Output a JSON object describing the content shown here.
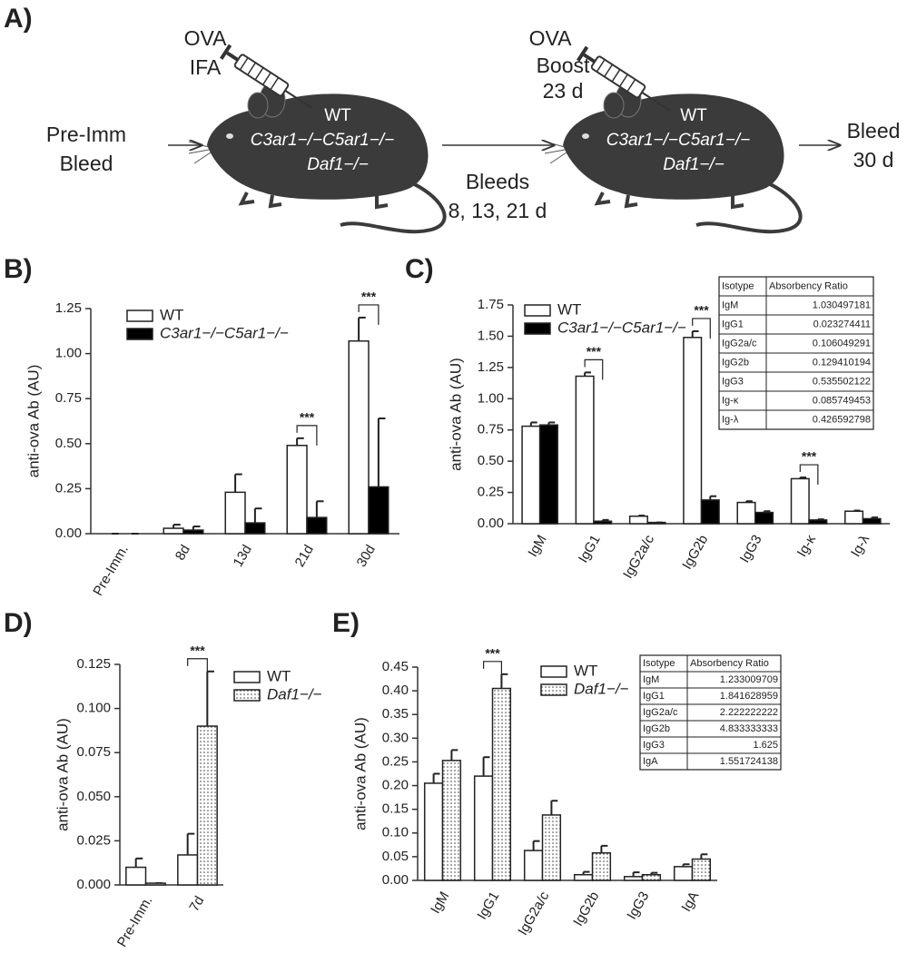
{
  "panel_a": {
    "label": "A)",
    "injection_1": [
      "OVA",
      "IFA"
    ],
    "pre_bleed": [
      "Pre-Imm",
      "Bleed"
    ],
    "mouse_1": [
      "WT",
      "C3ar1−/−C5ar1−/−",
      "Daf1−/−"
    ],
    "bleeds": [
      "Bleeds",
      "8, 13, 21 d"
    ],
    "injection_2": [
      "OVA",
      "Boost",
      "23 d"
    ],
    "mouse_2": [
      "WT",
      "C3ar1−/−C5ar1−/−",
      "Daf1−/−"
    ],
    "final_bleed": [
      "Bleed",
      "30 d"
    ]
  },
  "chart_data": [
    {
      "type": "bar",
      "label": "B)",
      "y_label": "anti-ova Ab (AU)",
      "legend": "upper left",
      "categories": [
        "Pre-Imm.",
        "8d",
        "13d",
        "21d",
        "30d"
      ],
      "series": [
        {
          "name": "WT",
          "color": "#ffffff",
          "italic": false,
          "values": [
            0,
            0.03,
            0.23,
            0.49,
            1.07
          ],
          "errors": [
            0,
            0.02,
            0.1,
            0.04,
            0.13
          ]
        },
        {
          "name": "C3ar1−/−C5ar1−/−",
          "color": "#000000",
          "italic": true,
          "values": [
            0,
            0.02,
            0.06,
            0.09,
            0.26
          ],
          "errors": [
            0,
            0.02,
            0.08,
            0.09,
            0.38
          ]
        }
      ],
      "ylim": [
        0,
        1.25
      ],
      "yticks": [
        {
          "value": 0,
          "label": "0.00"
        },
        0.25,
        {
          "value": 0.5,
          "label": "0.50"
        },
        0.75,
        {
          "value": 1,
          "label": "1.00"
        },
        1.25
      ],
      "significance": [
        {
          "category": "21d",
          "label": "***"
        },
        {
          "category": "30d",
          "label": "***"
        }
      ]
    },
    {
      "type": "bar",
      "label": "C)",
      "y_label": "anti-ova Ab (AU)",
      "legend": "upper left",
      "categories": [
        "IgM",
        "IgG1",
        "IgG2a/c",
        "IgG2b",
        "IgG3",
        "Ig-κ",
        "Ig-λ"
      ],
      "series": [
        {
          "name": "WT",
          "color": "#ffffff",
          "italic": false,
          "values": [
            0.78,
            1.18,
            0.06,
            1.49,
            0.17,
            0.36,
            0.1
          ],
          "errors": [
            0.03,
            0.03,
            0.005,
            0.05,
            0.01,
            0.01,
            0.005
          ]
        },
        {
          "name": "C3ar1−/−C5ar1−/−",
          "color": "#000000",
          "italic": true,
          "values": [
            0.79,
            0.02,
            0.01,
            0.19,
            0.09,
            0.03,
            0.04
          ],
          "errors": [
            0.02,
            0.01,
            0,
            0.03,
            0.01,
            0.005,
            0.01
          ]
        }
      ],
      "ylim": [
        0,
        1.75
      ],
      "yticks": [
        {
          "value": 0,
          "label": "0.00"
        },
        0.25,
        {
          "value": 0.5,
          "label": "0.50"
        },
        0.75,
        {
          "value": 1,
          "label": "1.00"
        },
        1.25,
        {
          "value": 1.5,
          "label": "1.50"
        },
        1.75
      ],
      "significance": [
        {
          "category": "IgG1",
          "label": "***"
        },
        {
          "category": "IgG2b",
          "label": "***"
        },
        {
          "category": "Ig-κ",
          "label": "***"
        }
      ],
      "table": {
        "columns": [
          "Isotype",
          "Absorbency Ratio"
        ],
        "rows": [
          [
            "IgM",
            1.030497181
          ],
          [
            "IgG1",
            0.023274411
          ],
          [
            "IgG2a/c",
            0.106049291
          ],
          [
            "IgG2b",
            0.129410194
          ],
          [
            "IgG3",
            0.535502122
          ],
          [
            "Ig-κ",
            0.085749453
          ],
          [
            "Ig-λ",
            0.426592798
          ]
        ]
      }
    },
    {
      "type": "bar",
      "label": "D)",
      "y_label": "anti-ova Ab (AU)",
      "legend": "upper right",
      "categories": [
        "Pre-Imm.",
        "7d"
      ],
      "series": [
        {
          "name": "WT",
          "color": "#ffffff",
          "italic": false,
          "values": [
            0.01,
            0.017
          ],
          "errors": [
            0.005,
            0.012
          ]
        },
        {
          "name": "Daf1−/−",
          "color": "#ffffff",
          "hatch": "dots",
          "italic": true,
          "values": [
            0.001,
            0.09
          ],
          "errors": [
            0,
            0.031
          ]
        }
      ],
      "ylim": [
        0,
        0.125
      ],
      "yticks": [
        {
          "value": 0,
          "label": "0.000"
        },
        0.025,
        {
          "value": 0.05,
          "label": "0.050"
        },
        0.075,
        {
          "value": 0.1,
          "label": "0.100"
        },
        0.125
      ],
      "significance": [
        {
          "category": "7d",
          "label": "***"
        }
      ]
    },
    {
      "type": "bar",
      "label": "E)",
      "y_label": "anti-ova Ab (AU)",
      "legend": "upper center",
      "categories": [
        "IgM",
        "IgG1",
        "IgG2a/c",
        "IgG2b",
        "IgG3",
        "IgA"
      ],
      "series": [
        {
          "name": "WT",
          "color": "#ffffff",
          "italic": false,
          "values": [
            0.205,
            0.22,
            0.063,
            0.012,
            0.008,
            0.029
          ],
          "errors": [
            0.02,
            0.04,
            0.02,
            0.006,
            0.009,
            0.005
          ]
        },
        {
          "name": "Daf1−/−",
          "color": "#ffffff",
          "hatch": "dots",
          "italic": true,
          "values": [
            0.253,
            0.405,
            0.138,
            0.058,
            0.012,
            0.045
          ],
          "errors": [
            0.022,
            0.03,
            0.03,
            0.015,
            0.004,
            0.01
          ]
        }
      ],
      "ylim": [
        0,
        0.45
      ],
      "yticks": [
        {
          "value": 0,
          "label": "0.00"
        },
        0.05,
        {
          "value": 0.1,
          "label": "0.10"
        },
        0.15,
        {
          "value": 0.2,
          "label": "0.20"
        },
        0.25,
        {
          "value": 0.3,
          "label": "0.30"
        },
        0.35,
        {
          "value": 0.4,
          "label": "0.40"
        },
        0.45
      ],
      "significance": [
        {
          "category": "IgG1",
          "label": "***"
        }
      ],
      "table": {
        "columns": [
          "Isotype",
          "Absorbency Ratio"
        ],
        "rows": [
          [
            "IgM",
            1.233009709
          ],
          [
            "IgG1",
            1.841628959
          ],
          [
            "IgG2a/c",
            2.222222222
          ],
          [
            "IgG2b",
            4.833333333
          ],
          [
            "IgG3",
            1.625
          ],
          [
            "IgA",
            1.551724138
          ]
        ]
      }
    }
  ]
}
